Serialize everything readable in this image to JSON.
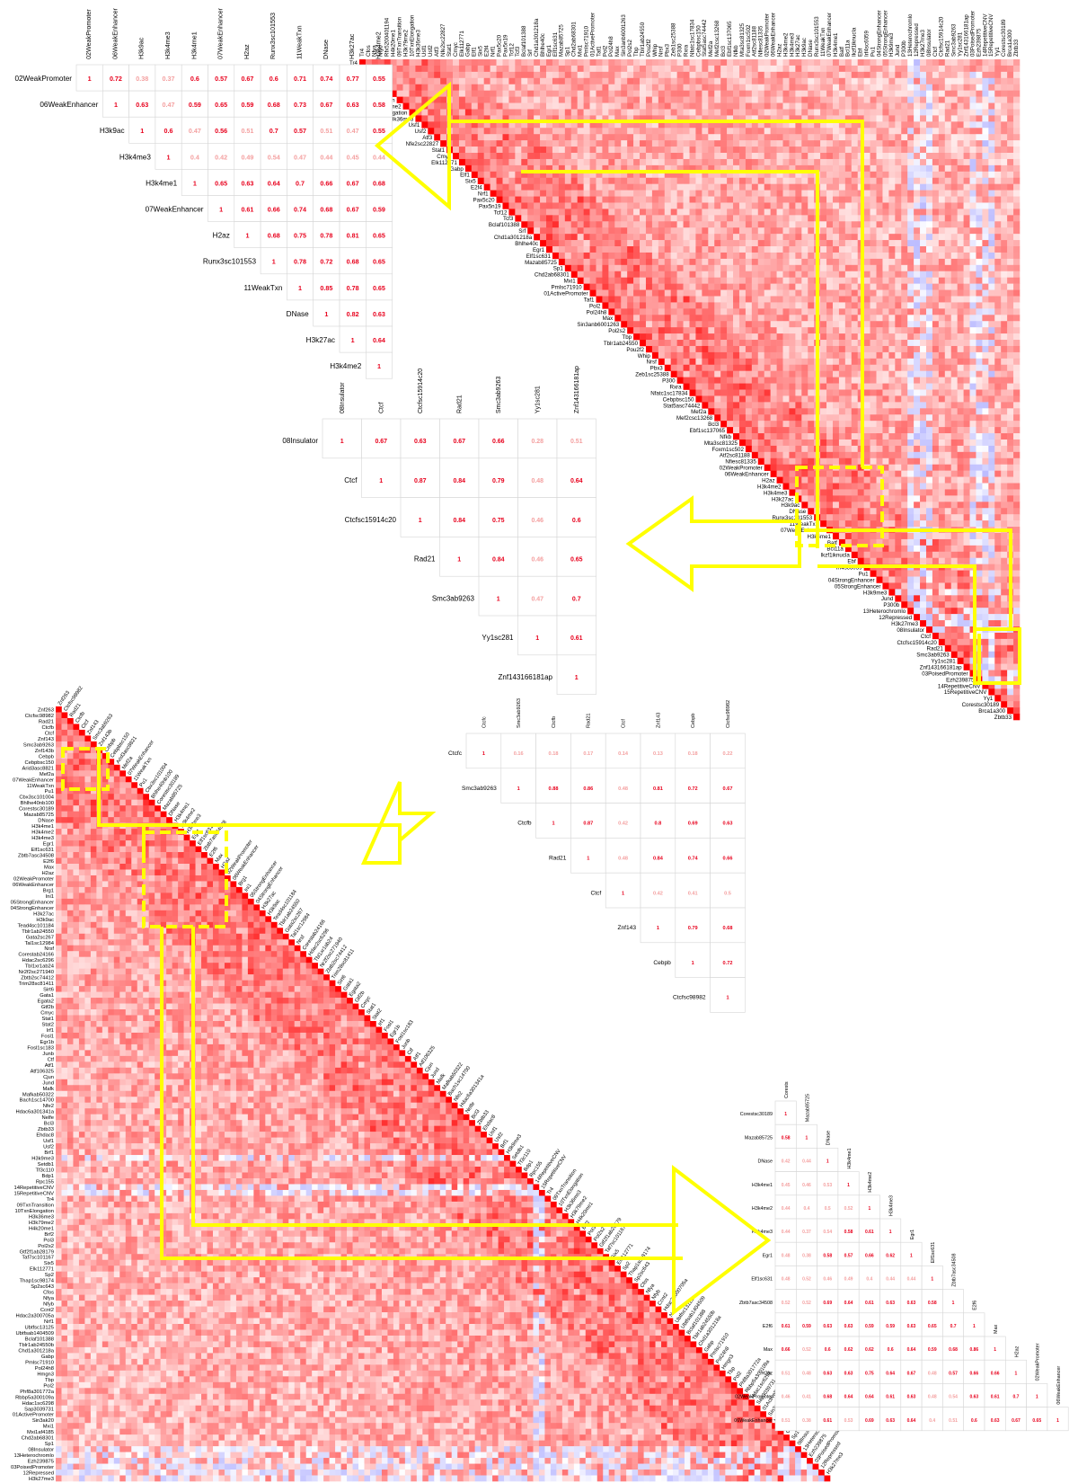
{
  "colors": {
    "high": "#ff0000",
    "low": "#ffffff",
    "neg": "#3333ff",
    "highlight": "#ffff00",
    "text_hi": "#e8001c",
    "text_lo": "#f4a0a0"
  },
  "chart_data": [
    {
      "type": "heatmap",
      "id": "big-top",
      "labels": [
        "Tr4",
        "Cfos",
        "Nfya",
        "Nfyb",
        "Rfx5200401194",
        "H4k20me1",
        "09TxnTransition",
        "H3k79me2",
        "10TxnElongation",
        "H3k36me3",
        "Usf1",
        "Usf2",
        "Atf3",
        "Nfe2sc22827",
        "Stat1",
        "Cmyc",
        "Elk112771",
        "Gabp",
        "Elf1",
        "Six5",
        "E2f4",
        "Nrf1",
        "Pax5c20",
        "Pax5n19",
        "Tcf12",
        "Tcf3",
        "Bclaf101388",
        "Srf",
        "Chd1a301218a",
        "Bhlhe40c",
        "Egr1",
        "Elf1sc631",
        "Mazab85725",
        "Sp1",
        "Chd2ab68301",
        "Mxi1",
        "Pmlsc71910",
        "01ActivePromoter",
        "Taf1",
        "Pol2",
        "Pol24h8",
        "Max",
        "Sin3anb6001263",
        "Pol2s2",
        "Tbp",
        "Tblr1ab24550",
        "Pou2f2",
        "Whip",
        "Nrsf",
        "Pbx3",
        "Zeb1sc25388",
        "P300",
        "Rxra",
        "Nfatc1sc17834",
        "Cebpbsc150",
        "Stat5asc74442",
        "Mef2a",
        "Mef2csc13268",
        "Bcl3",
        "Ebf1sc137065",
        "Nfkb",
        "Mta3sc81325",
        "Foxm1sc502",
        "Atf2sc81188",
        "Nfiesc81335",
        "02WeakPromoter",
        "06WeakEnhancer",
        "H2az",
        "H3k4me2",
        "H3k4me3",
        "H3k27ac",
        "H3k9ac",
        "DNase",
        "Runx3sc101553",
        "11WeakTxn",
        "07WeakEnhancer",
        "H3k4me1",
        "Batf",
        "Bcl11a",
        "Ikzf1iknucla",
        "Ebf",
        "Irf4sc6059",
        "Pu1",
        "04StrongEnhancer",
        "05StrongEnhancer",
        "H3k9me3",
        "Jund",
        "P300b",
        "13Heterochromlo",
        "12Repressed",
        "H3k27me3",
        "08Insulator",
        "Ctcf",
        "Ctcfsc15914c20",
        "Rad21",
        "Smc3ab9263",
        "Yy1sc281",
        "Znf143166181ap",
        "03PoisedPromoter",
        "Ezh239875",
        "14RepetitiveCNV",
        "15RepetitiveCNV",
        "Yy1",
        "Corestsc30189",
        "Brca1a300",
        "Zbtb33"
      ]
    },
    {
      "type": "heatmap",
      "id": "big-bottom",
      "labels": [
        "Znf263",
        "Ctcfsc98982",
        "Rad21",
        "Ctcfb",
        "Ctcf",
        "Znf143",
        "Smc3ab9263",
        "Znf143b",
        "Cebpb",
        "Cebpbsc150",
        "Arid3asc8821",
        "Mef2a",
        "07WeakEnhancer",
        "11WeakTxn",
        "Pu1",
        "Cbx3sc101004",
        "Bhlhe40nb100",
        "Corestsc30189",
        "Mazab85725",
        "DNase",
        "H3k4me1",
        "H3k4me2",
        "H3k4me3",
        "Egr1",
        "Elf1sc631",
        "Zbtb7asc34508",
        "E2f6",
        "Max",
        "H2az",
        "02WeakPromoter",
        "06WeakEnhancer",
        "Brg1",
        "Ini1",
        "05StrongEnhancer",
        "04StrongEnhancer",
        "H3k27ac",
        "H3k9ac",
        "Tead4sc101184",
        "Tblr1ab24550",
        "Gata2sc267",
        "Tal1sc12984",
        "Nrsf",
        "Corestab24166",
        "Hdac2sc6296",
        "Tbl1xr1ab24",
        "Nr2f2sc271940",
        "Zbtb2sc74412",
        "Trim28sc81411",
        "Sirt6",
        "Gata1",
        "Egata2",
        "Gtf2b",
        "Cmyc",
        "Stat1",
        "Stat2",
        "Irf1",
        "Fosl1",
        "Egr1b",
        "Fosl1sc183",
        "Junb",
        "Ctf",
        "Atf1",
        "Atf106325",
        "Cjun",
        "Jund",
        "Mafk",
        "Mafkab50322",
        "Bach1sc14700",
        "Nfe2",
        "Hdac6a301341a",
        "Nelfe",
        "Bcl3",
        "Zbtb33",
        "Ehdac8",
        "Usf1",
        "Usf2",
        "Brf1",
        "H3k9me3",
        "Setdb1",
        "Tf3c110",
        "Bdp1",
        "Rpc155",
        "14RepetitiveCNV",
        "15RepetitiveCNV",
        "Tr4",
        "09TxnTransition",
        "10TxnElongation",
        "H3k36me3",
        "H3k79me2",
        "H4k20me1",
        "Brf2",
        "Pol3",
        "Pol2s2",
        "Gtf2f1ab28179",
        "Taf7sc101167",
        "Six5",
        "Elk112771",
        "Sp2",
        "Thap1sc98174",
        "Sp2sc643",
        "Cfos",
        "Nfya",
        "Nfyb",
        "Ccnt2",
        "Hdac2a300705a",
        "Nrf1",
        "Ubtfsc13125",
        "Ubtfsab1404509",
        "Bclaf101388",
        "Tblr1ab24550b",
        "Chd1a301218a",
        "Gabp",
        "Pmlsc71910",
        "Pol24h8",
        "Hmgn3",
        "Tbp",
        "Pol2",
        "Phf8a301772a",
        "Rbbp5a300109a",
        "Hdac1sc6298",
        "Sap3039731",
        "01ActivePromoter",
        "Sin3ak20",
        "Mxi1",
        "Mxi1af4185",
        "Chd2ab68301",
        "Sp1",
        "08Insulator",
        "13Heterochromlo",
        "Ezh239875",
        "03PoisedPromoter",
        "12Repressed",
        "H3k27me3"
      ]
    },
    {
      "type": "table",
      "id": "mini1",
      "rotated_header": true,
      "cols": 8,
      "labels": [
        "02WeakPromoter",
        "06WeakEnhancer",
        "H3k9ac",
        "H3k4me3",
        "H3k4me1",
        "07WeakEnhancer",
        "H2az",
        "Runx3sc101553",
        "11WeakTxn",
        "DNase",
        "H3k27ac",
        "H3k4me2"
      ],
      "values": [
        [
          1,
          0.72,
          0.38,
          0.37,
          0.6,
          0.57,
          0.67,
          0.6,
          0.71,
          0.74,
          0.77,
          0.55
        ],
        [
          null,
          1,
          0.63,
          0.47,
          0.59,
          0.65,
          0.59,
          0.68,
          0.73,
          0.67,
          0.63,
          0.58
        ],
        [
          null,
          null,
          1,
          0.6,
          0.47,
          0.56,
          0.51,
          0.7,
          0.57,
          0.51,
          0.47,
          0.55
        ],
        [
          null,
          null,
          null,
          1,
          0.4,
          0.42,
          0.49,
          0.54,
          0.47,
          0.44,
          0.45,
          0.44
        ],
        [
          null,
          null,
          null,
          null,
          1,
          0.65,
          0.63,
          0.64,
          0.7,
          0.66,
          0.67,
          0.68
        ],
        [
          null,
          null,
          null,
          null,
          null,
          1,
          0.61,
          0.66,
          0.74,
          0.68,
          0.67,
          0.59
        ],
        [
          null,
          null,
          null,
          null,
          null,
          null,
          1,
          0.68,
          0.75,
          0.78,
          0.81,
          0.65
        ],
        [
          null,
          null,
          null,
          null,
          null,
          null,
          null,
          1,
          0.78,
          0.72,
          0.68,
          0.65
        ],
        [
          null,
          null,
          null,
          null,
          null,
          null,
          null,
          null,
          1,
          0.85,
          0.78,
          0.65
        ],
        [
          null,
          null,
          null,
          null,
          null,
          null,
          null,
          null,
          null,
          1,
          0.82,
          0.63
        ],
        [
          null,
          null,
          null,
          null,
          null,
          null,
          null,
          null,
          null,
          null,
          1,
          0.64
        ],
        [
          null,
          null,
          null,
          null,
          null,
          null,
          null,
          null,
          null,
          null,
          null,
          1
        ]
      ]
    },
    {
      "type": "table",
      "id": "mini2",
      "labels": [
        "08Insulator",
        "Ctcf",
        "Ctcfsc15914c20",
        "Rad21",
        "Smc3ab9263",
        "Yy1sc281",
        "Znf143166181ap"
      ],
      "values": [
        [
          1,
          0.67,
          0.63,
          0.67,
          0.66,
          0.28,
          0.51
        ],
        [
          null,
          1,
          0.87,
          0.84,
          0.79,
          0.48,
          0.64
        ],
        [
          null,
          null,
          1,
          0.84,
          0.75,
          0.46,
          0.6
        ],
        [
          null,
          null,
          null,
          1,
          0.84,
          0.46,
          0.65
        ],
        [
          null,
          null,
          null,
          null,
          1,
          0.47,
          0.7
        ],
        [
          null,
          null,
          null,
          null,
          null,
          1,
          0.61
        ],
        [
          null,
          null,
          null,
          null,
          null,
          null,
          1
        ]
      ]
    },
    {
      "type": "table",
      "id": "mini3",
      "labels": [
        "Ctcfc",
        "Smc3ab9263",
        "Ctcfb",
        "Rad21",
        "Ctcf",
        "Znf143",
        "Cebpb",
        "Ctcfsc98982"
      ],
      "values": [
        [
          1,
          0.16,
          0.18,
          0.17,
          0.14,
          0.13,
          0.18,
          0.22
        ],
        [
          null,
          1,
          0.88,
          0.86,
          0.48,
          0.81,
          0.72,
          0.67
        ],
        [
          null,
          null,
          1,
          0.87,
          0.42,
          0.8,
          0.69,
          0.63
        ],
        [
          null,
          null,
          null,
          1,
          0.48,
          0.84,
          0.74,
          0.66
        ],
        [
          null,
          null,
          null,
          null,
          1,
          0.42,
          0.41,
          0.5
        ],
        [
          null,
          null,
          null,
          null,
          null,
          1,
          0.79,
          0.68
        ],
        [
          null,
          null,
          null,
          null,
          null,
          null,
          1,
          0.72
        ],
        [
          null,
          null,
          null,
          null,
          null,
          null,
          null,
          1
        ]
      ]
    },
    {
      "type": "table",
      "id": "mini4",
      "lower": true,
      "labels": [
        "Corestsc30189",
        "Mazab85725",
        "DNase",
        "H3k4me1",
        "H3k4me2",
        "H3k4me3",
        "Egr1",
        "Elf1sc631",
        "Zbtb7asc34508",
        "E2f6",
        "Max",
        "H2az",
        "02WeakPromoter",
        "06WeakEnhancer"
      ],
      "header_labels": [
        "Corests",
        "Mazab85725",
        "DNase",
        "H3k4me1",
        "H3k4me2",
        "H3k4me3",
        "Egr1",
        "Elf1sc631",
        "Zbtb7asc34508",
        "E2f6",
        "Max",
        "H2az",
        "02WeakPromoter",
        "06WeakEnhancer"
      ],
      "values": [
        [
          1
        ],
        [
          0.58,
          1
        ],
        [
          0.42,
          0.44,
          1
        ],
        [
          0.45,
          0.46,
          0.53,
          1
        ],
        [
          0.44,
          0.4,
          0.5,
          0.52,
          1
        ],
        [
          0.44,
          0.37,
          0.54,
          0.58,
          0.61,
          1
        ],
        [
          0.48,
          0.38,
          0.58,
          0.57,
          0.66,
          0.62,
          1
        ],
        [
          0.48,
          0.52,
          0.46,
          0.49,
          0.4,
          0.44,
          0.44,
          1
        ],
        [
          0.52,
          0.52,
          0.69,
          0.64,
          0.61,
          0.63,
          0.63,
          0.58,
          1
        ],
        [
          0.61,
          0.59,
          0.63,
          0.63,
          0.59,
          0.59,
          0.63,
          0.65,
          0.7,
          1
        ],
        [
          0.66,
          0.52,
          0.6,
          0.62,
          0.62,
          0.6,
          0.64,
          0.59,
          0.68,
          0.86,
          1
        ],
        [
          0.51,
          0.48,
          0.63,
          0.63,
          0.75,
          0.64,
          0.67,
          0.48,
          0.57,
          0.66,
          0.66,
          1
        ],
        [
          0.46,
          0.41,
          0.68,
          0.64,
          0.64,
          0.61,
          0.63,
          0.48,
          0.54,
          0.63,
          0.61,
          0.7,
          1
        ],
        [
          0.51,
          0.38,
          0.61,
          0.53,
          0.69,
          0.63,
          0.64,
          0.4,
          0.51,
          0.6,
          0.63,
          0.67,
          0.65,
          1
        ]
      ]
    }
  ]
}
